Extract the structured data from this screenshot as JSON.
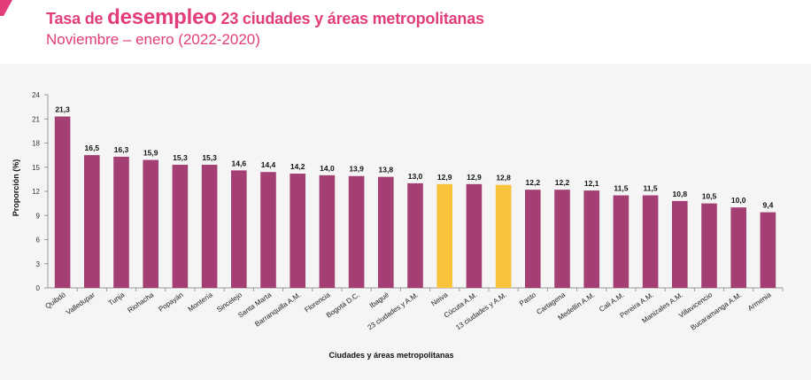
{
  "header": {
    "title_prefix": "Tasa de ",
    "title_emphasis": "desempleo",
    "title_suffix": " 23 ciudades y áreas metropolitanas",
    "subtitle": "Noviembre – enero (2022-2020)"
  },
  "colors": {
    "accent": "#e23d7a",
    "bar_default": "#a43f73",
    "bar_highlight": "#f8c23a",
    "background": "#f5f5f5"
  },
  "chart_data": {
    "type": "bar",
    "title": "",
    "xlabel": "Ciudades y áreas metropolitanas",
    "ylabel": "Proporción (%)",
    "ylim": [
      0,
      24
    ],
    "yticks": [
      0,
      3,
      6,
      9,
      12,
      15,
      18,
      21,
      24
    ],
    "categories": [
      "Quibdó",
      "Valledupar",
      "Tunja",
      "Riohacha",
      "Popayán",
      "Montería",
      "Sincelejo",
      "Santa Marta",
      "Barranquilla A.M.",
      "Florencia",
      "Bogotá D.C.",
      "Ibagué",
      "23 ciudades y A.M.",
      "Neiva",
      "Cúcuta A.M.",
      "13 ciudades y A.M.",
      "Pasto",
      "Cartagena",
      "Medellín A.M.",
      "Cali A.M.",
      "Pereira A.M.",
      "Manizales A.M.",
      "Villavicencio",
      "Bucaramanga A.M.",
      "Armenia"
    ],
    "values": [
      21.3,
      16.5,
      16.3,
      15.9,
      15.3,
      15.3,
      14.6,
      14.4,
      14.2,
      14.0,
      13.9,
      13.8,
      13.0,
      12.9,
      12.9,
      12.8,
      12.2,
      12.2,
      12.1,
      11.5,
      11.5,
      10.8,
      10.5,
      10.0,
      9.4
    ],
    "labels": [
      "21,3",
      "16,5",
      "16,3",
      "15,9",
      "15,3",
      "15,3",
      "14,6",
      "14,4",
      "14,2",
      "14,0",
      "13,9",
      "13,8",
      "13,0",
      "12,9",
      "12,9",
      "12,8",
      "12,2",
      "12,2",
      "12,1",
      "11,5",
      "11,5",
      "10,8",
      "10,5",
      "10,0",
      "9,4"
    ],
    "highlighted": [
      "Neiva",
      "13 ciudades y A.M."
    ]
  }
}
